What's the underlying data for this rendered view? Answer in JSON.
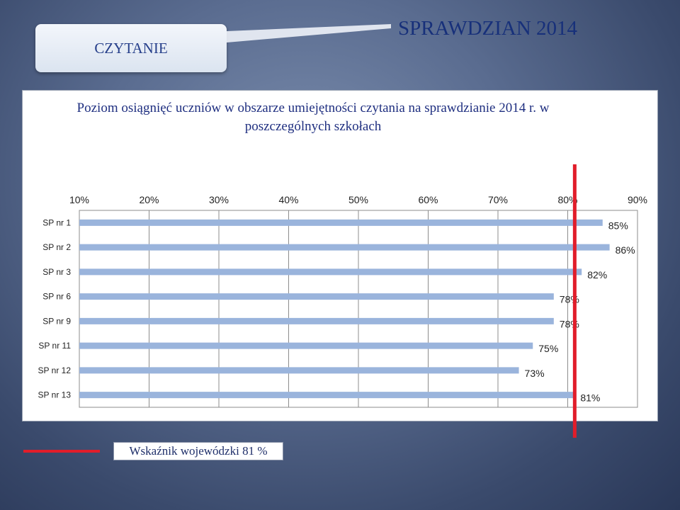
{
  "header": {
    "section_label": "CZYTANIE",
    "slide_title": "SPRAWDZIAN 2014"
  },
  "legend": {
    "label": "Wskaźnik wojewódzki 81 %",
    "color": "#e11d2a"
  },
  "chart_data": {
    "type": "bar",
    "orientation": "horizontal",
    "title": "Poziom osiągnięć uczniów w obszarze umiejętności czytania na sprawdzianie 2014 r. w poszczególnych szkołach",
    "categories": [
      "SP nr 1",
      "SP nr 2",
      "SP nr 3",
      "SP nr 6",
      "SP nr 9",
      "SP nr 11",
      "SP nr 12",
      "SP nr 13"
    ],
    "values": [
      85,
      86,
      82,
      78,
      78,
      75,
      73,
      81
    ],
    "value_labels": [
      "85%",
      "86%",
      "82%",
      "78%",
      "78%",
      "75%",
      "73%",
      "81%"
    ],
    "xlim": [
      10,
      90
    ],
    "x_ticks": [
      10,
      20,
      30,
      40,
      50,
      60,
      70,
      80,
      90
    ],
    "x_tick_labels": [
      "10%",
      "20%",
      "30%",
      "40%",
      "50%",
      "60%",
      "70%",
      "80%",
      "90%"
    ],
    "axis_position": "top",
    "grid": true,
    "reference_line": {
      "value": 81,
      "color": "#e11d2a"
    },
    "bar_color": "#9ab4dc"
  }
}
